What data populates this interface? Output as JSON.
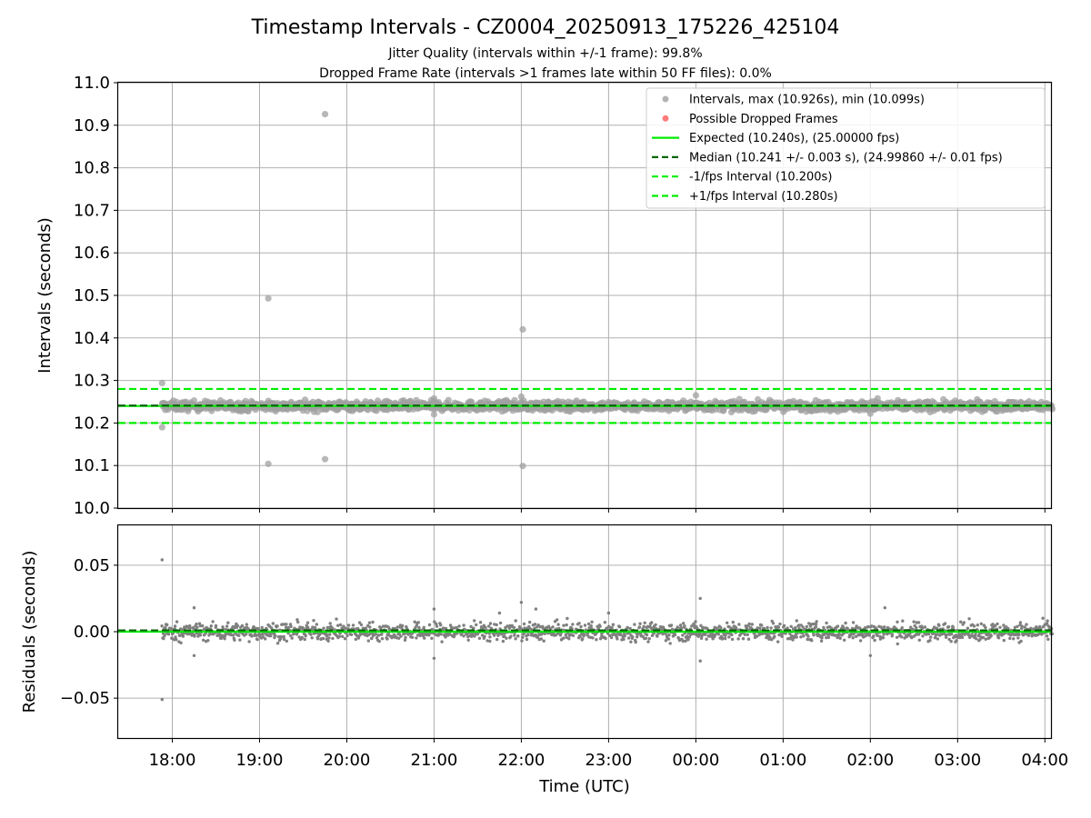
{
  "chart_data": {
    "type": "scatter",
    "title": "Timestamp Intervals - CZ0004_20250913_175226_425104",
    "subtitle": [
      "Jitter Quality (intervals within +/-1 frame): 99.8%",
      "Dropped Frame Rate (intervals >1 frames late within 50 FF files): 0.0%"
    ],
    "xlabel": "Time (UTC)",
    "x_ticks": [
      "18:00",
      "19:00",
      "20:00",
      "21:00",
      "22:00",
      "23:00",
      "00:00",
      "01:00",
      "02:00",
      "03:00",
      "04:00"
    ],
    "x_range_hours": [
      17.38,
      28.07
    ],
    "grid": true,
    "panels": [
      {
        "ylabel": "Intervals (seconds)",
        "ylim": [
          10.0,
          11.0
        ],
        "y_ticks": [
          "10.0",
          "10.1",
          "10.2",
          "10.3",
          "10.4",
          "10.5",
          "10.6",
          "10.7",
          "10.8",
          "10.9",
          "11.0"
        ],
        "legend_position": "upper-right",
        "series": [
          {
            "name": "Intervals, max (10.926s), min (10.099s)",
            "kind": "scatter",
            "color": "#a0a0a0",
            "outliers": [
              {
                "x": "17:53",
                "y": 10.294
              },
              {
                "x": "17:53",
                "y": 10.19
              },
              {
                "x": "19:06",
                "y": 10.493
              },
              {
                "x": "19:06",
                "y": 10.104
              },
              {
                "x": "19:45",
                "y": 10.926
              },
              {
                "x": "19:45",
                "y": 10.115
              },
              {
                "x": "21:00",
                "y": 10.22
              },
              {
                "x": "21:00",
                "y": 10.258
              },
              {
                "x": "22:01",
                "y": 10.42
              },
              {
                "x": "22:01",
                "y": 10.099
              },
              {
                "x": "22:00",
                "y": 10.262
              },
              {
                "x": "00:00",
                "y": 10.265
              },
              {
                "x": "02:00",
                "y": 10.222
              },
              {
                "x": "02:05",
                "y": 10.258
              }
            ],
            "bulk": {
              "x_start": "17:53",
              "x_end": "04:05",
              "center": 10.24,
              "spread": 0.01
            }
          },
          {
            "name": "Possible Dropped Frames",
            "kind": "scatter",
            "color": "#ff5a5a",
            "points": []
          },
          {
            "name": "Expected (10.240s), (25.00000 fps)",
            "kind": "hline",
            "y": 10.24,
            "color": "#00ee00",
            "dash": "solid"
          },
          {
            "name": "Median (10.241 +/- 0.003 s), (24.99860 +/- 0.01 fps)",
            "kind": "hline",
            "y": 10.241,
            "color": "#006400",
            "dash": "dashed"
          },
          {
            "name": "-1/fps Interval (10.200s)",
            "kind": "hline",
            "y": 10.2,
            "color": "#00ee00",
            "dash": "dashed"
          },
          {
            "name": "+1/fps Interval (10.280s)",
            "kind": "hline",
            "y": 10.28,
            "color": "#00ee00",
            "dash": "dashed"
          }
        ]
      },
      {
        "ylabel": "Residuals (seconds)",
        "ylim": [
          -0.08,
          0.08
        ],
        "y_ticks": [
          "0.05",
          "0.00",
          "−0.05"
        ],
        "y_tick_values": [
          0.05,
          0.0,
          -0.05
        ],
        "series": [
          {
            "kind": "scatter",
            "color": "#808080",
            "outliers": [
              {
                "x": "17:53",
                "y": 0.054
              },
              {
                "x": "17:53",
                "y": -0.051
              },
              {
                "x": "18:15",
                "y": 0.018
              },
              {
                "x": "18:15",
                "y": -0.018
              },
              {
                "x": "21:00",
                "y": 0.017
              },
              {
                "x": "21:00",
                "y": -0.02
              },
              {
                "x": "21:45",
                "y": 0.014
              },
              {
                "x": "22:00",
                "y": 0.022
              },
              {
                "x": "22:10",
                "y": 0.017
              },
              {
                "x": "23:00",
                "y": 0.014
              },
              {
                "x": "00:03",
                "y": 0.025
              },
              {
                "x": "00:03",
                "y": -0.022
              },
              {
                "x": "02:00",
                "y": -0.018
              },
              {
                "x": "02:10",
                "y": 0.018
              }
            ],
            "bulk": {
              "x_start": "17:53",
              "x_end": "04:05",
              "center": 0.0,
              "spread": 0.006
            }
          },
          {
            "kind": "hline",
            "y": 0.0,
            "color": "#00ee00",
            "dash": "solid"
          },
          {
            "kind": "hline",
            "y": 0.001,
            "color": "#006400",
            "dash": "dashed"
          }
        ]
      }
    ]
  }
}
